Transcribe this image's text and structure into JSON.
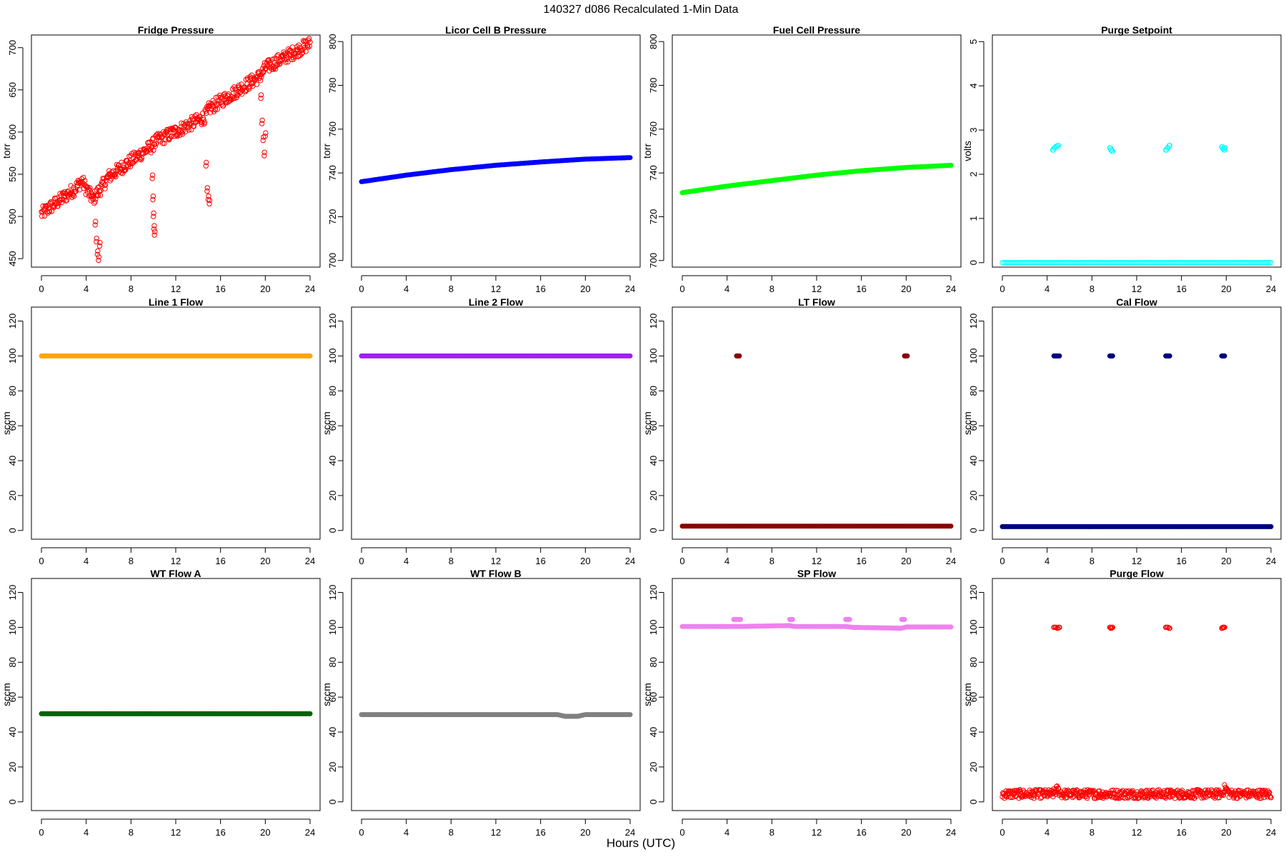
{
  "figure": {
    "title": "140327   d086   Recalculated 1-Min Data",
    "xlabel": "Hours (UTC)"
  },
  "chart_data": [
    {
      "type": "scatter",
      "title": "Fridge Pressure",
      "ylabel": "torr",
      "xlim": [
        0,
        24
      ],
      "ylim": [
        440,
        715
      ],
      "yticks": [
        450,
        500,
        550,
        600,
        650,
        700
      ],
      "xticks": [
        0,
        4,
        8,
        12,
        16,
        20,
        24
      ],
      "color": "#ff0000",
      "marker": "open-circle",
      "grid": false,
      "series": [
        {
          "kind": "trend",
          "x": [
            0,
            3,
            3.6,
            4.6,
            6.0,
            9.9,
            10.2,
            14.6,
            15.0,
            19.6,
            20.0,
            24
          ],
          "y": [
            503,
            533,
            542,
            520,
            547,
            584,
            589,
            618,
            628,
            667,
            676,
            705
          ],
          "noise": 8
        },
        {
          "kind": "dip",
          "x": [
            4.6,
            4.8,
            4.9,
            5.0,
            5.1,
            5.2
          ],
          "y": [
            520,
            490,
            470,
            455,
            448,
            465
          ]
        },
        {
          "kind": "dip",
          "x": [
            9.9,
            9.95,
            10.0,
            10.05,
            10.1
          ],
          "y": [
            545,
            520,
            500,
            485,
            478
          ]
        },
        {
          "kind": "dip",
          "x": [
            14.7,
            14.8,
            14.9,
            15.0
          ],
          "y": [
            560,
            530,
            520,
            515
          ]
        },
        {
          "kind": "dip",
          "x": [
            19.6,
            19.7,
            19.8,
            19.9,
            20.0
          ],
          "y": [
            640,
            610,
            590,
            572,
            595
          ]
        }
      ]
    },
    {
      "type": "scatter",
      "title": "Licor Cell B Pressure",
      "ylabel": "torr",
      "xlim": [
        0,
        24
      ],
      "ylim": [
        697,
        803
      ],
      "yticks": [
        700,
        720,
        740,
        760,
        780,
        800
      ],
      "xticks": [
        0,
        4,
        8,
        12,
        16,
        20,
        24
      ],
      "color": "#0000ff",
      "marker": "filled-circle",
      "grid": false,
      "series": [
        {
          "kind": "line",
          "x": [
            0,
            4,
            8,
            12,
            16,
            20,
            24
          ],
          "y": [
            736,
            739,
            741.5,
            743.5,
            745,
            746.3,
            747
          ]
        }
      ]
    },
    {
      "type": "scatter",
      "title": "Fuel Cell Pressure",
      "ylabel": "torr",
      "xlim": [
        0,
        24
      ],
      "ylim": [
        697,
        803
      ],
      "yticks": [
        700,
        720,
        740,
        760,
        780,
        800
      ],
      "xticks": [
        0,
        4,
        8,
        12,
        16,
        20,
        24
      ],
      "color": "#00ff00",
      "marker": "filled-circle",
      "grid": false,
      "series": [
        {
          "kind": "line",
          "x": [
            0,
            4,
            8,
            12,
            16,
            20,
            24
          ],
          "y": [
            731,
            734,
            736.5,
            739,
            741,
            742.5,
            743.5
          ]
        }
      ]
    },
    {
      "type": "scatter",
      "title": "Purge Setpoint",
      "ylabel": "volts",
      "xlim": [
        0,
        24
      ],
      "ylim": [
        -0.1,
        5.15
      ],
      "yticks": [
        0,
        1,
        2,
        3,
        4,
        5
      ],
      "xticks": [
        0,
        4,
        8,
        12,
        16,
        20,
        24
      ],
      "color": "#00ffff",
      "marker": "open-circle",
      "grid": false,
      "series": [
        {
          "kind": "line",
          "x": [
            0,
            24
          ],
          "y": [
            0,
            0
          ]
        },
        {
          "kind": "cluster",
          "x": [
            4.5,
            4.65,
            4.8,
            4.95
          ],
          "y": [
            2.55,
            2.6,
            2.63,
            2.65
          ]
        },
        {
          "kind": "cluster",
          "x": [
            9.6,
            9.7,
            9.8
          ],
          "y": [
            2.6,
            2.55,
            2.52
          ]
        },
        {
          "kind": "cluster",
          "x": [
            14.6,
            14.75,
            14.9
          ],
          "y": [
            2.55,
            2.6,
            2.65
          ]
        },
        {
          "kind": "cluster",
          "x": [
            19.6,
            19.7,
            19.8,
            19.85
          ],
          "y": [
            2.62,
            2.58,
            2.55,
            2.6
          ]
        }
      ]
    },
    {
      "type": "scatter",
      "title": "Line 1 Flow",
      "ylabel": "sccm",
      "xlim": [
        0,
        24
      ],
      "ylim": [
        -5,
        128
      ],
      "yticks": [
        0,
        20,
        40,
        60,
        80,
        100,
        120
      ],
      "xticks": [
        0,
        4,
        8,
        12,
        16,
        20,
        24
      ],
      "color": "#ffa500",
      "marker": "filled-circle",
      "grid": false,
      "series": [
        {
          "kind": "line",
          "x": [
            0,
            24
          ],
          "y": [
            100,
            100
          ]
        }
      ]
    },
    {
      "type": "scatter",
      "title": "Line 2 Flow",
      "ylabel": "sccm",
      "xlim": [
        0,
        24
      ],
      "ylim": [
        -5,
        128
      ],
      "yticks": [
        0,
        20,
        40,
        60,
        80,
        100,
        120
      ],
      "xticks": [
        0,
        4,
        8,
        12,
        16,
        20,
        24
      ],
      "color": "#a020f0",
      "marker": "filled-circle",
      "grid": false,
      "series": [
        {
          "kind": "line",
          "x": [
            0,
            24
          ],
          "y": [
            100,
            100
          ]
        }
      ]
    },
    {
      "type": "scatter",
      "title": "LT Flow",
      "ylabel": "sccm",
      "xlim": [
        0,
        24
      ],
      "ylim": [
        -5,
        128
      ],
      "yticks": [
        0,
        20,
        40,
        60,
        80,
        100,
        120
      ],
      "xticks": [
        0,
        4,
        8,
        12,
        16,
        20,
        24
      ],
      "color": "#8b0000",
      "marker": "filled-circle",
      "grid": false,
      "series": [
        {
          "kind": "line",
          "x": [
            0,
            24
          ],
          "y": [
            2.5,
            2.5
          ]
        },
        {
          "kind": "cluster",
          "x": [
            4.85,
            4.95,
            5.05
          ],
          "y": [
            100,
            100,
            100
          ]
        },
        {
          "kind": "cluster",
          "x": [
            19.85,
            19.95,
            20.05
          ],
          "y": [
            100,
            100,
            100
          ]
        }
      ]
    },
    {
      "type": "scatter",
      "title": "Cal Flow",
      "ylabel": "sccm",
      "xlim": [
        0,
        24
      ],
      "ylim": [
        -5,
        128
      ],
      "yticks": [
        0,
        20,
        40,
        60,
        80,
        100,
        120
      ],
      "xticks": [
        0,
        4,
        8,
        12,
        16,
        20,
        24
      ],
      "color": "#000080",
      "marker": "filled-circle",
      "grid": false,
      "series": [
        {
          "kind": "line",
          "x": [
            0,
            24
          ],
          "y": [
            2.2,
            2.2
          ]
        },
        {
          "kind": "cluster",
          "x": [
            4.6,
            4.75,
            4.9,
            5.05
          ],
          "y": [
            100,
            100,
            100,
            100
          ]
        },
        {
          "kind": "cluster",
          "x": [
            9.6,
            9.7,
            9.8
          ],
          "y": [
            100,
            100,
            100
          ]
        },
        {
          "kind": "cluster",
          "x": [
            14.6,
            14.75,
            14.9
          ],
          "y": [
            100,
            100,
            100
          ]
        },
        {
          "kind": "cluster",
          "x": [
            19.6,
            19.7,
            19.8
          ],
          "y": [
            100,
            100,
            100
          ]
        }
      ]
    },
    {
      "type": "scatter",
      "title": "WT Flow A",
      "ylabel": "sccm",
      "xlim": [
        0,
        24
      ],
      "ylim": [
        -5,
        128
      ],
      "yticks": [
        0,
        20,
        40,
        60,
        80,
        100,
        120
      ],
      "xticks": [
        0,
        4,
        8,
        12,
        16,
        20,
        24
      ],
      "color": "#006400",
      "marker": "filled-circle",
      "grid": false,
      "series": [
        {
          "kind": "line",
          "x": [
            0,
            24
          ],
          "y": [
            50.5,
            50.5
          ]
        }
      ]
    },
    {
      "type": "scatter",
      "title": "WT Flow B",
      "ylabel": "sccm",
      "xlim": [
        0,
        24
      ],
      "ylim": [
        -5,
        128
      ],
      "yticks": [
        0,
        20,
        40,
        60,
        80,
        100,
        120
      ],
      "xticks": [
        0,
        4,
        8,
        12,
        16,
        20,
        24
      ],
      "color": "#808080",
      "marker": "filled-circle",
      "grid": false,
      "series": [
        {
          "kind": "line",
          "x": [
            0,
            17.5,
            18.2,
            19.3,
            20,
            24
          ],
          "y": [
            50,
            50,
            49,
            49,
            50,
            50
          ]
        }
      ]
    },
    {
      "type": "scatter",
      "title": "SP Flow",
      "ylabel": "sccm",
      "xlim": [
        0,
        24
      ],
      "ylim": [
        -5,
        128
      ],
      "yticks": [
        0,
        20,
        40,
        60,
        80,
        100,
        120
      ],
      "xticks": [
        0,
        4,
        8,
        12,
        16,
        20,
        24
      ],
      "color": "#ee82ee",
      "marker": "filled-circle",
      "grid": false,
      "series": [
        {
          "kind": "line",
          "x": [
            0,
            4.5,
            5.2,
            9.6,
            10.0,
            14.6,
            15.2,
            19.6,
            20.0,
            24
          ],
          "y": [
            100.5,
            100.5,
            100.5,
            101,
            100.5,
            100.5,
            100,
            99.5,
            100.2,
            100.2
          ]
        },
        {
          "kind": "cluster",
          "x": [
            4.6,
            4.8,
            5.0,
            5.15
          ],
          "y": [
            104.5,
            104.5,
            104.5,
            104.5
          ]
        },
        {
          "kind": "cluster",
          "x": [
            9.6,
            9.7,
            9.8
          ],
          "y": [
            104.5,
            104.5,
            104.5
          ]
        },
        {
          "kind": "cluster",
          "x": [
            14.6,
            14.75,
            14.9
          ],
          "y": [
            104.5,
            104.5,
            104.5
          ]
        },
        {
          "kind": "cluster",
          "x": [
            19.6,
            19.7,
            19.8
          ],
          "y": [
            104.5,
            104.5,
            104.5
          ]
        }
      ]
    },
    {
      "type": "scatter",
      "title": "Purge Flow",
      "ylabel": "sccm",
      "xlim": [
        0,
        24
      ],
      "ylim": [
        -5,
        128
      ],
      "yticks": [
        0,
        20,
        40,
        60,
        80,
        100,
        120
      ],
      "xticks": [
        0,
        4,
        8,
        12,
        16,
        20,
        24
      ],
      "color": "#ff0000",
      "marker": "open-circle",
      "grid": false,
      "series": [
        {
          "kind": "trend",
          "x": [
            0,
            4.5,
            4.9,
            5.3,
            9.6,
            14.6,
            19.6,
            19.9,
            20.3,
            24
          ],
          "y": [
            4.5,
            4.5,
            7,
            4.5,
            4.5,
            4.5,
            4.5,
            8,
            4.5,
            4.5
          ],
          "noise": 2.5
        },
        {
          "kind": "cluster",
          "x": [
            4.6,
            4.75,
            4.9,
            5.05
          ],
          "y": [
            100,
            100,
            99.5,
            100
          ]
        },
        {
          "kind": "cluster",
          "x": [
            9.6,
            9.7,
            9.8
          ],
          "y": [
            100,
            99.5,
            100
          ]
        },
        {
          "kind": "cluster",
          "x": [
            14.6,
            14.75,
            14.9
          ],
          "y": [
            100,
            100,
            99.5
          ]
        },
        {
          "kind": "cluster",
          "x": [
            19.6,
            19.7,
            19.8
          ],
          "y": [
            99.5,
            100,
            100
          ]
        }
      ]
    }
  ]
}
